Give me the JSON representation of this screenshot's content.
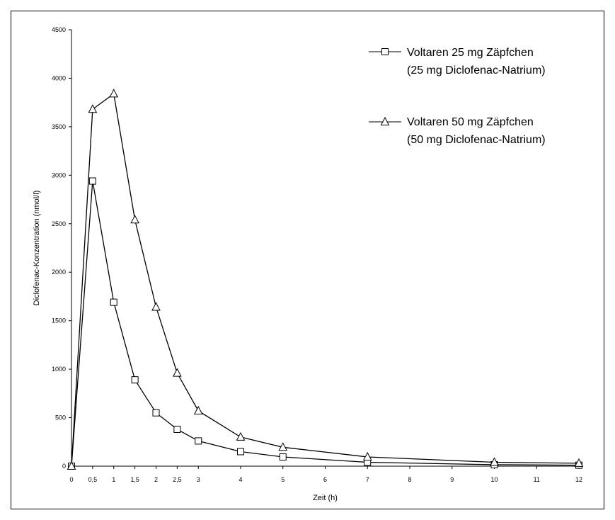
{
  "chart_data": {
    "type": "line",
    "title": "",
    "xlabel": "Zeit (h)",
    "ylabel": "Diclofenac-Konzentration (nmol/l)",
    "xlim": [
      0,
      12
    ],
    "ylim": [
      0,
      4500
    ],
    "x": [
      0,
      0.5,
      1,
      1.5,
      2,
      2.5,
      3,
      4,
      5,
      7,
      10,
      12
    ],
    "x_tick_values": [
      0,
      0.5,
      1,
      1.5,
      2,
      2.5,
      3,
      4,
      5,
      6,
      7,
      8,
      9,
      10,
      11,
      12
    ],
    "x_tick_labels": [
      "0",
      "0,5",
      "1",
      "1,5",
      "2",
      "2,5",
      "3",
      "4",
      "5",
      "6",
      "7",
      "8",
      "9",
      "10",
      "11",
      "12"
    ],
    "y_tick_values": [
      0,
      500,
      1000,
      1500,
      2000,
      2500,
      3000,
      3500,
      4000,
      4500
    ],
    "y_tick_labels": [
      "0",
      "500",
      "1000",
      "1500",
      "2000",
      "2500",
      "3000",
      "3500",
      "4000",
      "4500"
    ],
    "grid": false,
    "legend_position": "top-right",
    "series": [
      {
        "name_line1": "Voltaren 25 mg Zäpfchen",
        "name_line2": "(25 mg Diclofenac-Natrium)",
        "marker": "square",
        "values": [
          0,
          2940,
          1690,
          890,
          550,
          380,
          260,
          150,
          95,
          40,
          15,
          10
        ]
      },
      {
        "name_line1": "Voltaren 50 mg Zäpfchen",
        "name_line2": "(50 mg Diclofenac-Natrium)",
        "marker": "triangle",
        "values": [
          0,
          3680,
          3840,
          2540,
          1640,
          960,
          570,
          300,
          195,
          95,
          40,
          30
        ]
      }
    ]
  }
}
